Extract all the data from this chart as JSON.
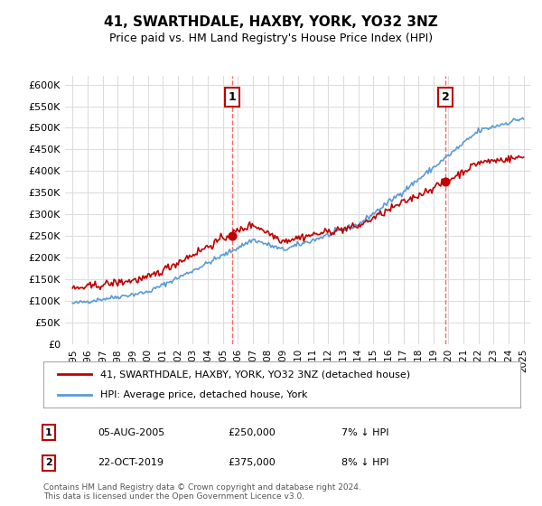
{
  "title": "41, SWARTHDALE, HAXBY, YORK, YO32 3NZ",
  "subtitle": "Price paid vs. HM Land Registry's House Price Index (HPI)",
  "legend_line1": "41, SWARTHDALE, HAXBY, YORK, YO32 3NZ (detached house)",
  "legend_line2": "HPI: Average price, detached house, York",
  "annotation1_label": "1",
  "annotation1_date": "05-AUG-2005",
  "annotation1_price": "£250,000",
  "annotation1_hpi": "7% ↓ HPI",
  "annotation2_label": "2",
  "annotation2_date": "22-OCT-2019",
  "annotation2_price": "£375,000",
  "annotation2_hpi": "8% ↓ HPI",
  "footer": "Contains HM Land Registry data © Crown copyright and database right 2024.\nThis data is licensed under the Open Government Licence v3.0.",
  "hpi_color": "#5b9bd5",
  "price_color": "#c00000",
  "dot_color": "#c00000",
  "vline_color": "#ff6666",
  "annotation_box_color": "#c00000",
  "ylim_min": 0,
  "ylim_max": 620000,
  "yticks": [
    0,
    50000,
    100000,
    150000,
    200000,
    250000,
    300000,
    350000,
    400000,
    450000,
    500000,
    550000,
    600000
  ],
  "xlim_min": 1994.5,
  "xlim_max": 2025.5,
  "sale1_x": 2005.6,
  "sale1_y": 250000,
  "sale2_x": 2019.8,
  "sale2_y": 375000,
  "bg_color": "#ffffff",
  "grid_color": "#dddddd"
}
